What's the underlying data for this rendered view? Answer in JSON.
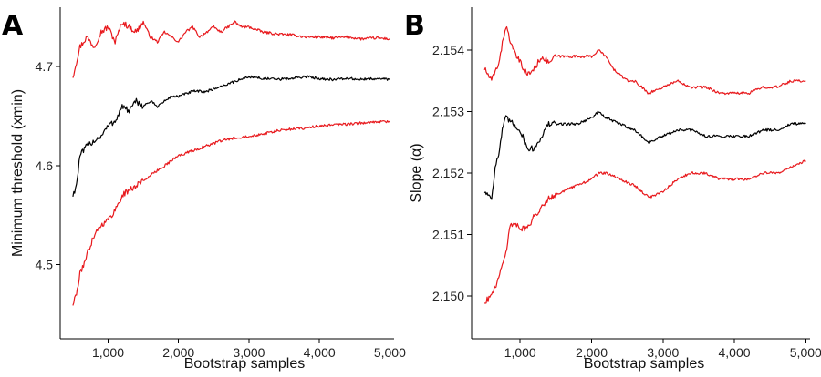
{
  "chart_data": [
    {
      "panel": "A",
      "type": "line",
      "xlabel": "Bootstrap samples",
      "ylabel": "Minimum  threshold (xmin)",
      "xlim": [
        320,
        5060
      ],
      "ylim": [
        4.425,
        4.76
      ],
      "xticks": [
        1000,
        2000,
        3000,
        4000,
        5000
      ],
      "xtick_labels": [
        "1,000",
        "2,000",
        "3,000",
        "4,000",
        "5,000"
      ],
      "yticks": [
        4.5,
        4.6,
        4.7
      ],
      "ytick_labels": [
        "4.5",
        "4.6",
        "4.7"
      ],
      "grid": false,
      "series": [
        {
          "color": "#e8191d",
          "points": [
            [
              500,
              4.69
            ],
            [
              600,
              4.72
            ],
            [
              700,
              4.73
            ],
            [
              800,
              4.72
            ],
            [
              900,
              4.735
            ],
            [
              1000,
              4.74
            ],
            [
              1100,
              4.725
            ],
            [
              1200,
              4.745
            ],
            [
              1300,
              4.74
            ],
            [
              1400,
              4.735
            ],
            [
              1500,
              4.745
            ],
            [
              1600,
              4.73
            ],
            [
              1700,
              4.725
            ],
            [
              1800,
              4.735
            ],
            [
              1900,
              4.73
            ],
            [
              2000,
              4.725
            ],
            [
              2100,
              4.735
            ],
            [
              2200,
              4.74
            ],
            [
              2300,
              4.73
            ],
            [
              2400,
              4.735
            ],
            [
              2500,
              4.74
            ],
            [
              2600,
              4.735
            ],
            [
              2700,
              4.74
            ],
            [
              2800,
              4.745
            ],
            [
              2900,
              4.74
            ],
            [
              3000,
              4.74
            ],
            [
              3200,
              4.735
            ],
            [
              3400,
              4.733
            ],
            [
              3600,
              4.732
            ],
            [
              3800,
              4.73
            ],
            [
              4000,
              4.73
            ],
            [
              4200,
              4.729
            ],
            [
              4400,
              4.73
            ],
            [
              4600,
              4.728
            ],
            [
              4800,
              4.729
            ],
            [
              5000,
              4.728
            ]
          ]
        },
        {
          "color": "#000000",
          "points": [
            [
              500,
              4.57
            ],
            [
              550,
              4.58
            ],
            [
              600,
              4.61
            ],
            [
              700,
              4.62
            ],
            [
              800,
              4.625
            ],
            [
              900,
              4.63
            ],
            [
              1000,
              4.64
            ],
            [
              1100,
              4.645
            ],
            [
              1200,
              4.66
            ],
            [
              1300,
              4.655
            ],
            [
              1400,
              4.665
            ],
            [
              1500,
              4.66
            ],
            [
              1600,
              4.665
            ],
            [
              1700,
              4.66
            ],
            [
              1800,
              4.665
            ],
            [
              1900,
              4.67
            ],
            [
              2000,
              4.67
            ],
            [
              2200,
              4.675
            ],
            [
              2400,
              4.675
            ],
            [
              2600,
              4.68
            ],
            [
              2800,
              4.685
            ],
            [
              3000,
              4.69
            ],
            [
              3200,
              4.688
            ],
            [
              3400,
              4.687
            ],
            [
              3600,
              4.688
            ],
            [
              3800,
              4.69
            ],
            [
              4000,
              4.688
            ],
            [
              4200,
              4.687
            ],
            [
              4400,
              4.688
            ],
            [
              4600,
              4.687
            ],
            [
              4800,
              4.688
            ],
            [
              5000,
              4.687
            ]
          ]
        },
        {
          "color": "#e8191d",
          "points": [
            [
              500,
              4.46
            ],
            [
              550,
              4.47
            ],
            [
              600,
              4.49
            ],
            [
              700,
              4.51
            ],
            [
              800,
              4.53
            ],
            [
              900,
              4.54
            ],
            [
              1000,
              4.545
            ],
            [
              1100,
              4.555
            ],
            [
              1200,
              4.57
            ],
            [
              1300,
              4.575
            ],
            [
              1400,
              4.58
            ],
            [
              1500,
              4.585
            ],
            [
              1600,
              4.59
            ],
            [
              1700,
              4.595
            ],
            [
              1800,
              4.6
            ],
            [
              1900,
              4.605
            ],
            [
              2000,
              4.61
            ],
            [
              2200,
              4.615
            ],
            [
              2400,
              4.62
            ],
            [
              2600,
              4.625
            ],
            [
              2800,
              4.628
            ],
            [
              3000,
              4.63
            ],
            [
              3200,
              4.632
            ],
            [
              3400,
              4.635
            ],
            [
              3600,
              4.637
            ],
            [
              3800,
              4.638
            ],
            [
              4000,
              4.64
            ],
            [
              4200,
              4.641
            ],
            [
              4400,
              4.642
            ],
            [
              4600,
              4.643
            ],
            [
              4800,
              4.644
            ],
            [
              5000,
              4.645
            ]
          ]
        }
      ]
    },
    {
      "panel": "B",
      "type": "line",
      "xlabel": "Bootstrap samples",
      "ylabel": "Slope (α)",
      "xlim": [
        320,
        5060
      ],
      "ylim": [
        2.1493,
        2.1547
      ],
      "xticks": [
        1000,
        2000,
        3000,
        4000,
        5000
      ],
      "xtick_labels": [
        "1,000",
        "2,000",
        "3,000",
        "4,000",
        "5,000"
      ],
      "yticks": [
        2.15,
        2.151,
        2.152,
        2.153,
        2.154
      ],
      "ytick_labels": [
        "2.150",
        "2.151",
        "2.152",
        "2.153",
        "2.154"
      ],
      "grid": false,
      "series": [
        {
          "color": "#e8191d",
          "points": [
            [
              500,
              2.1537
            ],
            [
              600,
              2.1535
            ],
            [
              700,
              2.1538
            ],
            [
              800,
              2.1544
            ],
            [
              900,
              2.154
            ],
            [
              1000,
              2.1538
            ],
            [
              1100,
              2.1536
            ],
            [
              1200,
              2.1537
            ],
            [
              1300,
              2.1539
            ],
            [
              1400,
              2.1538
            ],
            [
              1500,
              2.1539
            ],
            [
              1600,
              2.1539
            ],
            [
              1800,
              2.1539
            ],
            [
              2000,
              2.1539
            ],
            [
              2100,
              2.154
            ],
            [
              2200,
              2.1539
            ],
            [
              2300,
              2.1537
            ],
            [
              2400,
              2.1536
            ],
            [
              2500,
              2.1535
            ],
            [
              2600,
              2.1535
            ],
            [
              2700,
              2.1534
            ],
            [
              2800,
              2.1533
            ],
            [
              3000,
              2.1534
            ],
            [
              3200,
              2.1535
            ],
            [
              3400,
              2.1534
            ],
            [
              3600,
              2.1534
            ],
            [
              3800,
              2.1533
            ],
            [
              4000,
              2.1533
            ],
            [
              4200,
              2.1533
            ],
            [
              4400,
              2.1534
            ],
            [
              4600,
              2.1534
            ],
            [
              4800,
              2.1535
            ],
            [
              5000,
              2.1535
            ]
          ]
        },
        {
          "color": "#000000",
          "points": [
            [
              500,
              2.1517
            ],
            [
              600,
              2.1516
            ],
            [
              650,
              2.1521
            ],
            [
              700,
              2.1523
            ],
            [
              750,
              2.1527
            ],
            [
              800,
              2.1529
            ],
            [
              900,
              2.1528
            ],
            [
              1000,
              2.1527
            ],
            [
              1100,
              2.1524
            ],
            [
              1200,
              2.1524
            ],
            [
              1300,
              2.1526
            ],
            [
              1400,
              2.1528
            ],
            [
              1500,
              2.1528
            ],
            [
              1600,
              2.1528
            ],
            [
              1800,
              2.1528
            ],
            [
              2000,
              2.1529
            ],
            [
              2100,
              2.153
            ],
            [
              2200,
              2.1529
            ],
            [
              2400,
              2.1528
            ],
            [
              2600,
              2.1527
            ],
            [
              2800,
              2.1525
            ],
            [
              3000,
              2.1526
            ],
            [
              3200,
              2.1527
            ],
            [
              3400,
              2.1527
            ],
            [
              3600,
              2.1526
            ],
            [
              3800,
              2.1526
            ],
            [
              4000,
              2.1526
            ],
            [
              4200,
              2.1526
            ],
            [
              4400,
              2.1527
            ],
            [
              4600,
              2.1527
            ],
            [
              4800,
              2.1528
            ],
            [
              5000,
              2.1528
            ]
          ]
        },
        {
          "color": "#e8191d",
          "points": [
            [
              500,
              2.1499
            ],
            [
              600,
              2.15
            ],
            [
              700,
              2.1503
            ],
            [
              800,
              2.1507
            ],
            [
              850,
              2.1511
            ],
            [
              900,
              2.1512
            ],
            [
              1000,
              2.1511
            ],
            [
              1100,
              2.1511
            ],
            [
              1200,
              2.1513
            ],
            [
              1400,
              2.1516
            ],
            [
              1600,
              2.1517
            ],
            [
              1800,
              2.1518
            ],
            [
              2000,
              2.1519
            ],
            [
              2100,
              2.152
            ],
            [
              2200,
              2.152
            ],
            [
              2400,
              2.1519
            ],
            [
              2600,
              2.1518
            ],
            [
              2800,
              2.1516
            ],
            [
              3000,
              2.1517
            ],
            [
              3200,
              2.1519
            ],
            [
              3400,
              2.152
            ],
            [
              3600,
              2.152
            ],
            [
              3800,
              2.1519
            ],
            [
              4000,
              2.1519
            ],
            [
              4200,
              2.1519
            ],
            [
              4400,
              2.152
            ],
            [
              4600,
              2.152
            ],
            [
              4800,
              2.1521
            ],
            [
              5000,
              2.1522
            ]
          ]
        }
      ]
    }
  ]
}
